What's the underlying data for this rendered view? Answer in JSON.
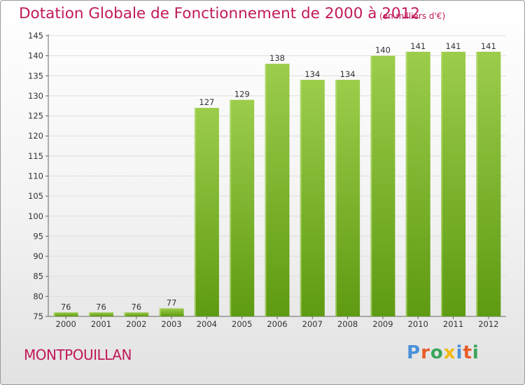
{
  "header": {
    "title": "Dotation Globale de Fonctionnement de 2000 à 2012",
    "unit": "(en milliers d'€)"
  },
  "footer": {
    "commune": "MONTPOUILLAN",
    "logo_text": "Proxiti"
  },
  "colors": {
    "accent": "#c2185b",
    "bar_light": "#9ccd4b",
    "bar_dark": "#5e9a12",
    "logo": [
      "#4a90d9",
      "#e85d2a",
      "#3aa65a",
      "#f2b90f",
      "#4a90d9",
      "#e85d2a",
      "#3aa65a"
    ]
  },
  "chart_data": {
    "type": "bar",
    "categories": [
      "2000",
      "2001",
      "2002",
      "2003",
      "2004",
      "2005",
      "2006",
      "2007",
      "2008",
      "2009",
      "2010",
      "2011",
      "2012"
    ],
    "values": [
      76,
      76,
      76,
      77,
      127,
      129,
      138,
      134,
      134,
      140,
      141,
      141,
      141
    ],
    "title": "Dotation Globale de Fonctionnement de 2000 à 2012",
    "xlabel": "",
    "ylabel": "",
    "ylim": [
      75,
      145
    ],
    "yticks": [
      75,
      80,
      85,
      90,
      95,
      100,
      105,
      110,
      115,
      120,
      125,
      130,
      135,
      140,
      145
    ],
    "grid": true,
    "data_labels": true
  }
}
